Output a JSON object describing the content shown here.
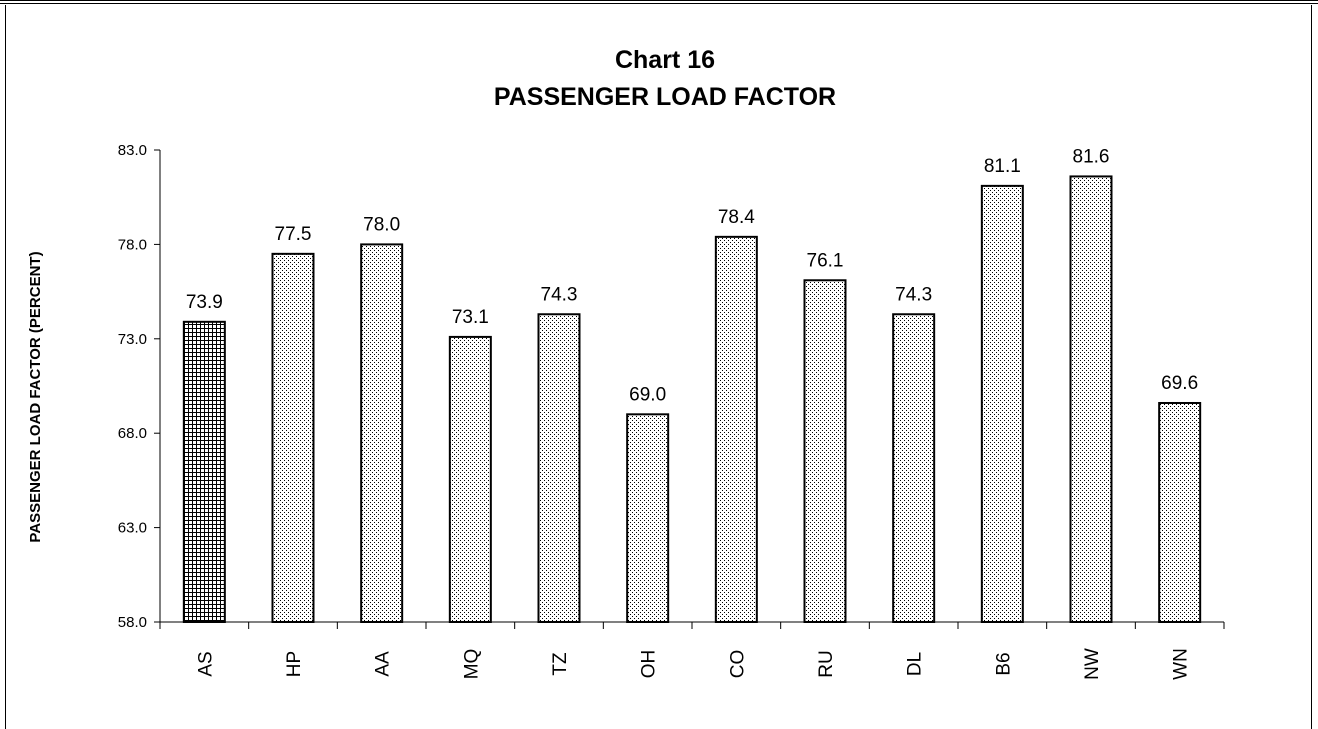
{
  "chart_data": {
    "type": "bar",
    "title": "Chart 16",
    "subtitle": "PASSENGER LOAD FACTOR",
    "ylabel": "PASSENGER LOAD FACTOR (PERCENT)",
    "xlabel": "",
    "ylim": [
      58.0,
      83.0
    ],
    "yticks": [
      "83.0",
      "78.0",
      "73.0",
      "68.0",
      "63.0",
      "58.0"
    ],
    "grid": false,
    "categories": [
      "AS",
      "HP",
      "AA",
      "MQ",
      "TZ",
      "OH",
      "CO",
      "RU",
      "DL",
      "B6",
      "NW",
      "WN"
    ],
    "values": [
      73.9,
      77.5,
      78.0,
      73.1,
      74.3,
      69.0,
      78.4,
      76.1,
      74.3,
      81.1,
      81.6,
      69.6
    ],
    "data_labels": [
      "73.9",
      "77.5",
      "78.0",
      "73.1",
      "74.3",
      "69.0",
      "78.4",
      "76.1",
      "74.3",
      "81.1",
      "81.6",
      "69.6"
    ],
    "highlight_category": "AS",
    "colors": {
      "bar_stroke": "#000000",
      "pattern_dots": "#000000",
      "background": "#ffffff"
    }
  }
}
